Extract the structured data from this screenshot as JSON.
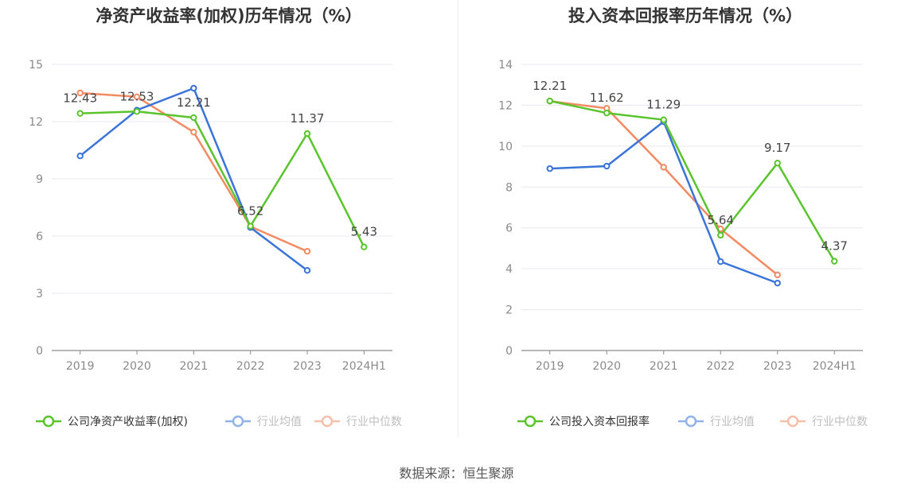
{
  "charts_meta": [
    {
      "title": "净资产收益率(加权)历年情况（%）",
      "legend": [
        "公司净资产收益率(加权)",
        "行业均值",
        "行业中位数"
      ]
    },
    {
      "title": "投入资本回报率历年情况（%）",
      "legend": [
        "公司投入资本回报率",
        "行业均值",
        "行业中位数"
      ]
    }
  ],
  "source": "数据来源：恒生聚源",
  "colors": {
    "company": "#5ac42c",
    "industry_mean": "#3a74d9",
    "industry_median": "#f38b62"
  },
  "chart_data": [
    {
      "type": "line",
      "title": "净资产收益率(加权)历年情况（%）",
      "categories": [
        "2019",
        "2020",
        "2021",
        "2022",
        "2023",
        "2024H1"
      ],
      "yticks": [
        "0",
        "3",
        "6",
        "9",
        "12",
        "15"
      ],
      "ylim": [
        0,
        15
      ],
      "grid": true,
      "legend_position": "bottom",
      "series": [
        {
          "name": "公司净资产收益率(加权)",
          "values": [
            12.43,
            12.53,
            12.21,
            6.52,
            11.37,
            5.43
          ],
          "labels": [
            "12.43",
            "12.53",
            "12.21",
            "6.52",
            "11.37",
            "5.43"
          ]
        },
        {
          "name": "行业均值",
          "values": [
            10.2,
            12.6,
            13.75,
            6.45,
            4.2,
            null
          ]
        },
        {
          "name": "行业中位数",
          "values": [
            13.5,
            13.3,
            11.45,
            6.5,
            5.2,
            null
          ]
        }
      ]
    },
    {
      "type": "line",
      "title": "投入资本回报率历年情况（%）",
      "categories": [
        "2019",
        "2020",
        "2021",
        "2022",
        "2023",
        "2024H1"
      ],
      "yticks": [
        "0",
        "2",
        "4",
        "6",
        "8",
        "10",
        "12",
        "14"
      ],
      "ylim": [
        0,
        14
      ],
      "grid": true,
      "legend_position": "bottom",
      "series": [
        {
          "name": "公司投入资本回报率",
          "values": [
            12.21,
            11.62,
            11.29,
            5.64,
            9.17,
            4.37
          ],
          "labels": [
            "12.21",
            "11.62",
            "11.29",
            "5.64",
            "9.17",
            "4.37"
          ]
        },
        {
          "name": "行业均值",
          "values": [
            8.9,
            9.02,
            11.2,
            4.35,
            3.3,
            null
          ]
        },
        {
          "name": "行业中位数",
          "values": [
            12.2,
            11.85,
            8.97,
            5.95,
            3.7,
            null
          ]
        }
      ]
    }
  ]
}
